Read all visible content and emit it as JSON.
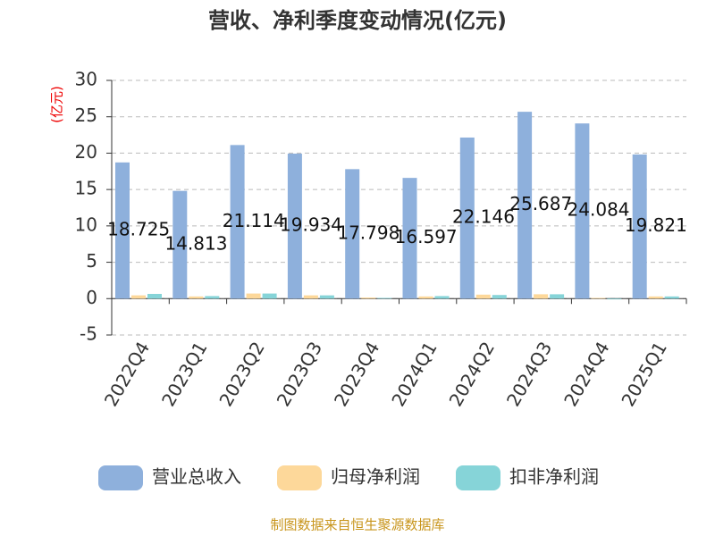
{
  "chart_data": {
    "type": "bar",
    "title": "营收、净利季度变动情况(亿元)",
    "y_label": "(亿元)",
    "categories": [
      "2022Q4",
      "2023Q1",
      "2023Q2",
      "2023Q3",
      "2023Q4",
      "2024Q1",
      "2024Q2",
      "2024Q3",
      "2024Q4",
      "2025Q1"
    ],
    "series": [
      {
        "name": "营业总收入",
        "color": "#8eb0dc",
        "values": [
          18.725,
          14.813,
          21.114,
          19.934,
          17.798,
          16.597,
          22.146,
          25.687,
          24.084,
          19.821
        ]
      },
      {
        "name": "归母净利润",
        "color": "#fdd89a",
        "values": [
          0.45,
          0.3,
          0.7,
          0.45,
          0.15,
          0.3,
          0.55,
          0.6,
          0.1,
          0.3
        ]
      },
      {
        "name": "扣非净利润",
        "color": "#86d4d8",
        "values": [
          0.65,
          0.35,
          0.7,
          0.45,
          0.1,
          0.35,
          0.5,
          0.6,
          -0.1,
          0.3
        ]
      }
    ],
    "ylim": [
      -5,
      30
    ],
    "yticks": [
      -5,
      0,
      5,
      10,
      15,
      20,
      25,
      30
    ],
    "grid": true,
    "source": "制图数据来自恒生聚源数据库"
  }
}
